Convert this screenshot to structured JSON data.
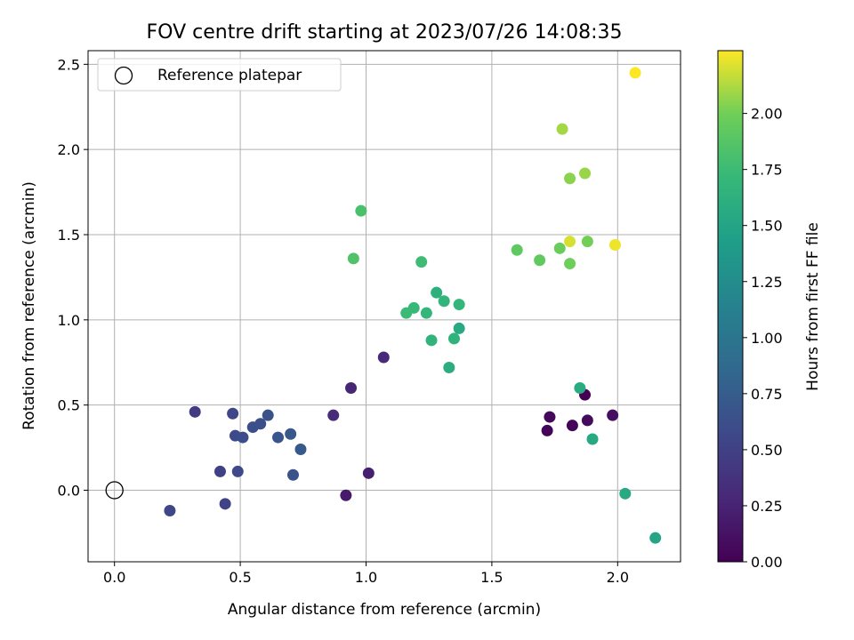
{
  "chart_data": {
    "type": "scatter",
    "title": "FOV centre drift starting at 2023/07/26 14:08:35",
    "xlabel": "Angular distance from reference (arcmin)",
    "ylabel": "Rotation from reference (arcmin)",
    "xlim": [
      -0.105,
      2.25
    ],
    "ylim": [
      -0.42,
      2.58
    ],
    "xticks": [
      0.0,
      0.5,
      1.0,
      1.5,
      2.0
    ],
    "xtick_labels": [
      "0.0",
      "0.5",
      "1.0",
      "1.5",
      "2.0"
    ],
    "yticks": [
      0.0,
      0.5,
      1.0,
      1.5,
      2.0,
      2.5
    ],
    "ytick_labels": [
      "0.0",
      "0.5",
      "1.0",
      "1.5",
      "2.0",
      "2.5"
    ],
    "grid": true,
    "legend": {
      "placement": "upper-left",
      "entries": [
        {
          "label": "Reference platepar",
          "marker": "open-circle"
        }
      ]
    },
    "reference_point": {
      "x": 0.0,
      "y": 0.0
    },
    "colorbar": {
      "label": "Hours from first FF file",
      "colormap": "viridis",
      "range": [
        0.0,
        2.28
      ],
      "ticks": [
        0.0,
        0.25,
        0.5,
        0.75,
        1.0,
        1.25,
        1.5,
        1.75,
        2.0
      ],
      "tick_labels": [
        "0.00",
        "0.25",
        "0.50",
        "0.75",
        "1.00",
        "1.25",
        "1.50",
        "1.75",
        "2.00"
      ]
    },
    "series": [
      {
        "points": [
          {
            "x": 1.87,
            "y": 0.56,
            "c": 0.0
          },
          {
            "x": 1.72,
            "y": 0.35,
            "c": 0.02
          },
          {
            "x": 1.82,
            "y": 0.38,
            "c": 0.04
          },
          {
            "x": 1.73,
            "y": 0.43,
            "c": 0.06
          },
          {
            "x": 1.88,
            "y": 0.41,
            "c": 0.08
          },
          {
            "x": 1.98,
            "y": 0.44,
            "c": 0.1
          },
          {
            "x": 0.92,
            "y": -0.03,
            "c": 0.18
          },
          {
            "x": 1.01,
            "y": 0.1,
            "c": 0.22
          },
          {
            "x": 0.94,
            "y": 0.6,
            "c": 0.27
          },
          {
            "x": 0.87,
            "y": 0.44,
            "c": 0.32
          },
          {
            "x": 1.07,
            "y": 0.78,
            "c": 0.3
          },
          {
            "x": 0.32,
            "y": 0.46,
            "c": 0.45
          },
          {
            "x": 0.42,
            "y": 0.11,
            "c": 0.5
          },
          {
            "x": 0.44,
            "y": -0.08,
            "c": 0.52
          },
          {
            "x": 0.47,
            "y": 0.45,
            "c": 0.55
          },
          {
            "x": 0.22,
            "y": -0.12,
            "c": 0.55
          },
          {
            "x": 0.49,
            "y": 0.11,
            "c": 0.58
          },
          {
            "x": 0.48,
            "y": 0.32,
            "c": 0.58
          },
          {
            "x": 0.51,
            "y": 0.31,
            "c": 0.6
          },
          {
            "x": 0.55,
            "y": 0.37,
            "c": 0.62
          },
          {
            "x": 0.58,
            "y": 0.39,
            "c": 0.63
          },
          {
            "x": 0.61,
            "y": 0.44,
            "c": 0.65
          },
          {
            "x": 0.65,
            "y": 0.31,
            "c": 0.68
          },
          {
            "x": 0.7,
            "y": 0.33,
            "c": 0.7
          },
          {
            "x": 0.71,
            "y": 0.09,
            "c": 0.66
          },
          {
            "x": 0.74,
            "y": 0.24,
            "c": 0.72
          },
          {
            "x": 2.15,
            "y": -0.28,
            "c": 1.5
          },
          {
            "x": 2.03,
            "y": -0.02,
            "c": 1.55
          },
          {
            "x": 1.9,
            "y": 0.3,
            "c": 1.55
          },
          {
            "x": 1.85,
            "y": 0.6,
            "c": 1.58
          },
          {
            "x": 1.33,
            "y": 0.72,
            "c": 1.6
          },
          {
            "x": 1.37,
            "y": 0.95,
            "c": 1.55
          },
          {
            "x": 1.28,
            "y": 1.16,
            "c": 1.62
          },
          {
            "x": 1.35,
            "y": 0.89,
            "c": 1.65
          },
          {
            "x": 1.26,
            "y": 0.88,
            "c": 1.66
          },
          {
            "x": 1.37,
            "y": 1.09,
            "c": 1.7
          },
          {
            "x": 1.31,
            "y": 1.11,
            "c": 1.68
          },
          {
            "x": 1.24,
            "y": 1.04,
            "c": 1.7
          },
          {
            "x": 1.19,
            "y": 1.07,
            "c": 1.72
          },
          {
            "x": 1.16,
            "y": 1.04,
            "c": 1.74
          },
          {
            "x": 1.22,
            "y": 1.34,
            "c": 1.76
          },
          {
            "x": 0.95,
            "y": 1.36,
            "c": 1.85
          },
          {
            "x": 0.98,
            "y": 1.64,
            "c": 1.82
          },
          {
            "x": 1.6,
            "y": 1.41,
            "c": 1.92
          },
          {
            "x": 1.69,
            "y": 1.35,
            "c": 1.93
          },
          {
            "x": 1.77,
            "y": 1.42,
            "c": 1.97
          },
          {
            "x": 1.81,
            "y": 1.33,
            "c": 1.99
          },
          {
            "x": 1.88,
            "y": 1.46,
            "c": 2.0
          },
          {
            "x": 1.81,
            "y": 1.83,
            "c": 2.05
          },
          {
            "x": 1.87,
            "y": 1.86,
            "c": 2.08
          },
          {
            "x": 1.78,
            "y": 2.12,
            "c": 2.1
          },
          {
            "x": 1.81,
            "y": 1.46,
            "c": 2.2
          },
          {
            "x": 1.99,
            "y": 1.44,
            "c": 2.25
          },
          {
            "x": 2.07,
            "y": 2.45,
            "c": 2.28
          }
        ]
      }
    ]
  }
}
